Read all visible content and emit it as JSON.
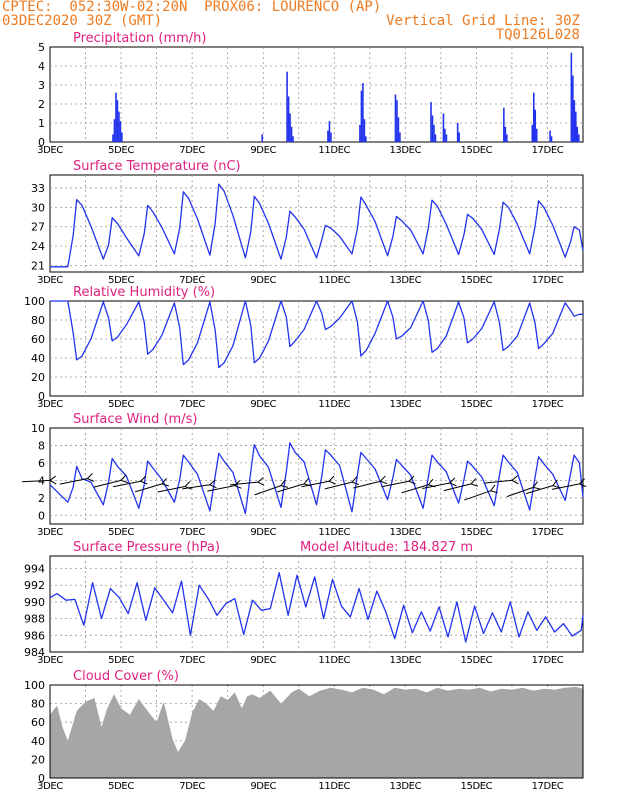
{
  "header": {
    "line1": "CPTEC:  052:30W-02:20N  PROX06: LOURENCO (AP)",
    "line2": "03DEC2020 30Z (GMT)",
    "grid_note": "Vertical Grid Line: 30Z",
    "code": "TQ0126L028"
  },
  "colors": {
    "header": "#ee7b22",
    "panel_title": "#e0207f",
    "series": "#2233ee",
    "cloud_fill": "#a6a6a6",
    "wind_arrow": "#000000",
    "grid": "#999999"
  },
  "chart_data": [
    {
      "type": "bar",
      "title": "Precipitation (mm/h)",
      "ylim": [
        0,
        5
      ],
      "yticks": [
        0,
        1,
        2,
        3,
        4,
        5
      ],
      "xlim": [
        3,
        18
      ],
      "xticks": [
        "3DEC",
        "5DEC",
        "7DEC",
        "9DEC",
        "11DEC",
        "13DEC",
        "15DEC",
        "17DEC"
      ],
      "grid": true,
      "events": [
        {
          "day": 4.75,
          "values": [
            0.4,
            1.2,
            2.6,
            2.2,
            1.6,
            1.1,
            0.5
          ]
        },
        {
          "day": 8.95,
          "values": [
            0.4
          ]
        },
        {
          "day": 9.65,
          "values": [
            3.7,
            2.4,
            1.5,
            0.8,
            0.3
          ]
        },
        {
          "day": 10.8,
          "values": [
            0.6,
            1.1,
            0.5
          ]
        },
        {
          "day": 11.7,
          "values": [
            0.9,
            2.7,
            3.1,
            1.2,
            0.3
          ]
        },
        {
          "day": 12.7,
          "values": [
            2.5,
            2.2,
            1.3,
            0.5
          ]
        },
        {
          "day": 13.7,
          "values": [
            2.1,
            1.4,
            0.9,
            0.4
          ]
        },
        {
          "day": 14.05,
          "values": [
            1.5,
            0.7,
            0.4
          ]
        },
        {
          "day": 14.45,
          "values": [
            1.0,
            0.5
          ]
        },
        {
          "day": 15.75,
          "values": [
            1.8,
            0.8,
            0.4
          ]
        },
        {
          "day": 16.55,
          "values": [
            0.9,
            2.6,
            1.7,
            0.7
          ]
        },
        {
          "day": 17.05,
          "values": [
            0.6,
            0.3
          ]
        },
        {
          "day": 17.65,
          "values": [
            4.7,
            3.5,
            2.2,
            1.6,
            0.8,
            0.4
          ]
        }
      ]
    },
    {
      "type": "line",
      "title": "Surface Temperature (nC)",
      "ylim": [
        20,
        35
      ],
      "yticks": [
        21,
        24,
        27,
        30,
        33
      ],
      "xlim": [
        3,
        18
      ],
      "xticks": [
        "3DEC",
        "5DEC",
        "7DEC",
        "9DEC",
        "11DEC",
        "13DEC",
        "15DEC",
        "17DEC"
      ],
      "grid": true,
      "x": [
        3.0,
        3.5,
        3.5,
        3.65,
        3.75,
        3.9,
        4.15,
        4.5,
        4.5,
        4.65,
        4.75,
        4.9,
        5.15,
        5.5,
        5.5,
        5.65,
        5.75,
        5.9,
        6.15,
        6.5,
        6.5,
        6.65,
        6.75,
        6.9,
        7.15,
        7.5,
        7.5,
        7.65,
        7.75,
        7.9,
        8.15,
        8.5,
        8.5,
        8.65,
        8.75,
        8.9,
        9.15,
        9.5,
        9.5,
        9.65,
        9.75,
        9.9,
        10.15,
        10.5,
        10.5,
        10.65,
        10.75,
        10.9,
        11.15,
        11.5,
        11.5,
        11.65,
        11.75,
        11.9,
        12.15,
        12.5,
        12.5,
        12.65,
        12.75,
        12.9,
        13.15,
        13.5,
        13.5,
        13.65,
        13.75,
        13.9,
        14.15,
        14.5,
        14.5,
        14.65,
        14.75,
        14.9,
        15.15,
        15.5,
        15.5,
        15.65,
        15.75,
        15.9,
        16.15,
        16.5,
        16.5,
        16.65,
        16.75,
        16.9,
        17.15,
        17.5,
        17.5,
        17.65,
        17.75,
        17.9,
        18.0
      ],
      "y": [
        20.8,
        20.8,
        20.8,
        25.6,
        31.2,
        30.3,
        27.1,
        22.0,
        22.0,
        24.2,
        28.4,
        27.5,
        25.3,
        22.5,
        22.5,
        25.9,
        30.3,
        29.3,
        26.9,
        22.8,
        22.8,
        26.8,
        32.4,
        31.4,
        28.2,
        22.6,
        22.6,
        27.6,
        33.6,
        32.5,
        28.7,
        22.2,
        22.2,
        26.2,
        31.7,
        30.6,
        27.5,
        22.0,
        22.0,
        25.4,
        29.4,
        28.5,
        26.6,
        22.2,
        22.2,
        25.0,
        27.2,
        26.8,
        25.5,
        22.8,
        22.8,
        26.7,
        31.6,
        30.3,
        27.8,
        22.5,
        22.5,
        25.5,
        28.6,
        27.9,
        26.5,
        22.8,
        22.8,
        26.9,
        31.1,
        30.2,
        27.4,
        22.7,
        22.7,
        25.8,
        28.9,
        28.3,
        26.6,
        22.7,
        22.7,
        26.7,
        30.8,
        30.0,
        27.4,
        22.8,
        22.8,
        27.0,
        31.0,
        30.0,
        27.2,
        22.3,
        22.3,
        24.7,
        27.0,
        26.5,
        23.3
      ]
    },
    {
      "type": "line",
      "title": "Relative Humidity (%)",
      "ylim": [
        0,
        100
      ],
      "yticks": [
        0,
        20,
        40,
        60,
        80,
        100
      ],
      "xlim": [
        3,
        18
      ],
      "xticks": [
        "3DEC",
        "5DEC",
        "7DEC",
        "9DEC",
        "11DEC",
        "13DEC",
        "15DEC",
        "17DEC"
      ],
      "grid": true,
      "x": [
        3.0,
        3.5,
        3.5,
        3.65,
        3.75,
        3.9,
        4.15,
        4.5,
        4.5,
        4.65,
        4.75,
        4.9,
        5.15,
        5.5,
        5.5,
        5.65,
        5.75,
        5.9,
        6.15,
        6.5,
        6.5,
        6.65,
        6.75,
        6.9,
        7.15,
        7.5,
        7.5,
        7.65,
        7.75,
        7.9,
        8.15,
        8.5,
        8.5,
        8.65,
        8.75,
        8.9,
        9.15,
        9.5,
        9.5,
        9.65,
        9.75,
        9.9,
        10.15,
        10.5,
        10.5,
        10.65,
        10.75,
        10.9,
        11.15,
        11.5,
        11.5,
        11.65,
        11.75,
        11.9,
        12.15,
        12.5,
        12.5,
        12.65,
        12.75,
        12.9,
        13.15,
        13.5,
        13.5,
        13.65,
        13.75,
        13.9,
        14.15,
        14.5,
        14.5,
        14.65,
        14.75,
        14.9,
        15.15,
        15.5,
        15.5,
        15.65,
        15.75,
        15.9,
        16.15,
        16.5,
        16.5,
        16.65,
        16.75,
        16.9,
        17.15,
        17.5,
        17.5,
        17.65,
        17.75,
        17.9,
        18.0
      ],
      "y": [
        100,
        100,
        100,
        67,
        38,
        42,
        60,
        99,
        99,
        82,
        58,
        62,
        75,
        99,
        99,
        78,
        44,
        49,
        64,
        98,
        98,
        72,
        33,
        38,
        56,
        99,
        99,
        69,
        30,
        35,
        53,
        100,
        100,
        74,
        35,
        40,
        58,
        100,
        100,
        83,
        52,
        58,
        70,
        100,
        100,
        87,
        70,
        73,
        82,
        100,
        100,
        78,
        42,
        48,
        66,
        100,
        100,
        83,
        60,
        63,
        72,
        100,
        100,
        79,
        46,
        50,
        63,
        99,
        99,
        82,
        56,
        60,
        71,
        99,
        99,
        77,
        48,
        52,
        63,
        98,
        98,
        77,
        50,
        55,
        66,
        98,
        98,
        90,
        84,
        86,
        86
      ]
    },
    {
      "type": "line",
      "title": "Surface Wind (m/s)",
      "ylim": [
        -1,
        10
      ],
      "yticks": [
        0,
        2,
        4,
        6,
        8,
        10
      ],
      "xlim": [
        3,
        18
      ],
      "xticks": [
        "3DEC",
        "5DEC",
        "7DEC",
        "9DEC",
        "11DEC",
        "13DEC",
        "15DEC",
        "17DEC"
      ],
      "grid": true,
      "x": [
        3.0,
        3.5,
        3.5,
        3.65,
        3.75,
        3.9,
        4.15,
        4.5,
        4.5,
        4.65,
        4.75,
        4.9,
        5.15,
        5.5,
        5.5,
        5.65,
        5.75,
        5.9,
        6.15,
        6.5,
        6.5,
        6.65,
        6.75,
        6.9,
        7.15,
        7.5,
        7.5,
        7.65,
        7.75,
        7.9,
        8.15,
        8.5,
        8.5,
        8.65,
        8.75,
        8.9,
        9.15,
        9.5,
        9.5,
        9.65,
        9.75,
        9.9,
        10.15,
        10.5,
        10.5,
        10.65,
        10.75,
        10.9,
        11.15,
        11.5,
        11.5,
        11.65,
        11.75,
        11.9,
        12.15,
        12.5,
        12.5,
        12.65,
        12.75,
        12.9,
        13.15,
        13.5,
        13.5,
        13.65,
        13.75,
        13.9,
        14.15,
        14.5,
        14.5,
        14.65,
        14.75,
        14.9,
        15.15,
        15.5,
        15.5,
        15.65,
        15.75,
        15.9,
        16.15,
        16.5,
        16.5,
        16.65,
        16.75,
        16.9,
        17.15,
        17.5,
        17.5,
        17.65,
        17.75,
        17.9,
        18.0
      ],
      "y": [
        3.5,
        1.5,
        1.5,
        3.2,
        5.6,
        4.2,
        3.8,
        1.2,
        1.2,
        3.8,
        6.5,
        5.6,
        4.5,
        0.8,
        0.8,
        3.5,
        6.2,
        5.4,
        4.1,
        1.5,
        1.5,
        4.1,
        6.9,
        6.1,
        4.7,
        0.5,
        0.5,
        4.5,
        7.1,
        6.2,
        4.9,
        0.2,
        0.2,
        5.0,
        8.1,
        6.8,
        5.5,
        0.9,
        0.9,
        5.0,
        8.3,
        7.2,
        6.1,
        1.2,
        1.2,
        4.5,
        7.5,
        6.9,
        5.7,
        0.4,
        0.4,
        4.6,
        7.2,
        6.5,
        5.3,
        1.8,
        1.8,
        4.3,
        6.4,
        5.7,
        4.6,
        0.8,
        0.8,
        4.4,
        6.9,
        6.1,
        5.0,
        1.4,
        1.4,
        4.1,
        6.2,
        5.6,
        4.4,
        1.1,
        1.1,
        4.6,
        6.9,
        6.1,
        4.9,
        0.6,
        0.6,
        4.3,
        6.7,
        5.9,
        4.7,
        1.7,
        1.7,
        4.8,
        6.9,
        6.0,
        2.1
      ],
      "wind_arrows": [
        {
          "x": 3.0,
          "y": 4.0,
          "dir": [
            -1.0,
            0.05
          ]
        },
        {
          "x": 4.05,
          "y": 4.2,
          "dir": [
            -1.0,
            0.2
          ]
        },
        {
          "x": 5.0,
          "y": 4.0,
          "dir": [
            -1.0,
            0.25
          ]
        },
        {
          "x": 5.55,
          "y": 3.9,
          "dir": [
            -1.0,
            0.2
          ]
        },
        {
          "x": 6.15,
          "y": 3.6,
          "dir": [
            -1.0,
            0.3
          ]
        },
        {
          "x": 6.8,
          "y": 3.3,
          "dir": [
            -1.0,
            0.2
          ]
        },
        {
          "x": 7.5,
          "y": 3.5,
          "dir": [
            -1.0,
            0.15
          ]
        },
        {
          "x": 8.2,
          "y": 3.4,
          "dir": [
            -1.0,
            0.2
          ]
        },
        {
          "x": 8.85,
          "y": 3.8,
          "dir": [
            -1.0,
            0.1
          ]
        },
        {
          "x": 9.5,
          "y": 3.4,
          "dir": [
            -1.0,
            0.35
          ]
        },
        {
          "x": 10.15,
          "y": 3.6,
          "dir": [
            -1.0,
            0.3
          ]
        },
        {
          "x": 10.85,
          "y": 3.9,
          "dir": [
            -1.0,
            0.2
          ]
        },
        {
          "x": 11.5,
          "y": 3.8,
          "dir": [
            -1.0,
            0.25
          ]
        },
        {
          "x": 12.3,
          "y": 3.9,
          "dir": [
            -1.0,
            0.25
          ]
        },
        {
          "x": 13.1,
          "y": 3.9,
          "dir": [
            -1.0,
            0.2
          ]
        },
        {
          "x": 13.65,
          "y": 3.5,
          "dir": [
            -1.0,
            0.3
          ]
        },
        {
          "x": 14.25,
          "y": 3.7,
          "dir": [
            -1.0,
            0.2
          ]
        },
        {
          "x": 14.85,
          "y": 3.6,
          "dir": [
            -1.0,
            0.25
          ]
        },
        {
          "x": 15.4,
          "y": 2.8,
          "dir": [
            -1.0,
            0.35
          ]
        },
        {
          "x": 16.0,
          "y": 4.0,
          "dir": [
            -1.0,
            0.1
          ]
        },
        {
          "x": 16.6,
          "y": 3.2,
          "dir": [
            -1.0,
            0.35
          ]
        },
        {
          "x": 17.15,
          "y": 3.4,
          "dir": [
            -1.0,
            0.3
          ]
        },
        {
          "x": 17.9,
          "y": 3.6,
          "dir": [
            -1.0,
            0.2
          ]
        }
      ]
    },
    {
      "type": "line",
      "title": "Surface Pressure (hPa)",
      "annotation": "Model Altitude: 184.827 m",
      "ylim": [
        984,
        995.5
      ],
      "yticks": [
        984,
        986,
        988,
        990,
        992,
        994
      ],
      "xlim": [
        3,
        18
      ],
      "xticks": [
        "3DEC",
        "5DEC",
        "7DEC",
        "9DEC",
        "11DEC",
        "13DEC",
        "15DEC",
        "17DEC"
      ],
      "grid": true,
      "x": [
        3.0,
        3.2,
        3.45,
        3.7,
        3.95,
        4.2,
        4.45,
        4.7,
        4.95,
        5.2,
        5.45,
        5.7,
        5.95,
        6.2,
        6.45,
        6.7,
        6.95,
        7.2,
        7.45,
        7.7,
        7.95,
        8.2,
        8.45,
        8.7,
        8.95,
        9.2,
        9.45,
        9.7,
        9.95,
        10.2,
        10.45,
        10.7,
        10.95,
        11.2,
        11.45,
        11.7,
        11.95,
        12.2,
        12.45,
        12.7,
        12.95,
        13.2,
        13.45,
        13.7,
        13.95,
        14.2,
        14.45,
        14.7,
        14.95,
        15.2,
        15.45,
        15.7,
        15.95,
        16.2,
        16.45,
        16.7,
        16.95,
        17.2,
        17.45,
        17.7,
        17.95,
        18.0
      ],
      "y": [
        990.5,
        991.0,
        990.2,
        990.3,
        987.2,
        992.3,
        988.0,
        991.6,
        990.5,
        988.6,
        992.3,
        987.8,
        991.7,
        990.2,
        988.7,
        992.5,
        986.0,
        992.0,
        990.4,
        988.4,
        989.8,
        990.4,
        986.1,
        990.2,
        989.0,
        989.2,
        993.5,
        988.4,
        993.2,
        989.4,
        993.0,
        988.0,
        992.7,
        989.5,
        988.2,
        991.6,
        987.9,
        991.3,
        988.8,
        985.6,
        989.6,
        986.3,
        988.8,
        986.5,
        989.4,
        985.8,
        990.0,
        985.2,
        989.5,
        986.2,
        988.7,
        986.4,
        990.0,
        985.8,
        988.8,
        986.6,
        988.2,
        986.4,
        987.4,
        985.9,
        986.6,
        988.4
      ]
    },
    {
      "type": "area",
      "title": "Cloud Cover (%)",
      "ylim": [
        0,
        100
      ],
      "yticks": [
        0,
        20,
        40,
        60,
        80,
        100
      ],
      "xlim": [
        3,
        18
      ],
      "xticks": [
        "3DEC",
        "5DEC",
        "7DEC",
        "9DEC",
        "11DEC",
        "13DEC",
        "15DEC",
        "17DEC"
      ],
      "grid": true,
      "x": [
        3.0,
        3.2,
        3.35,
        3.5,
        3.75,
        4.0,
        4.25,
        4.45,
        4.6,
        4.8,
        5.0,
        5.25,
        5.5,
        5.75,
        6.0,
        6.2,
        6.45,
        6.6,
        6.8,
        7.0,
        7.2,
        7.4,
        7.6,
        7.8,
        8.0,
        8.2,
        8.4,
        8.55,
        8.7,
        8.9,
        9.2,
        9.5,
        9.8,
        10.0,
        10.3,
        10.6,
        10.9,
        11.2,
        11.5,
        11.8,
        12.1,
        12.4,
        12.7,
        13.0,
        13.3,
        13.6,
        13.9,
        14.2,
        14.5,
        14.8,
        15.1,
        15.4,
        15.7,
        16.0,
        16.3,
        16.6,
        16.9,
        17.2,
        17.5,
        17.8,
        18.0
      ],
      "y": [
        68,
        78,
        55,
        40,
        72,
        82,
        86,
        55,
        74,
        90,
        75,
        68,
        85,
        72,
        60,
        82,
        42,
        28,
        40,
        70,
        85,
        80,
        72,
        88,
        84,
        92,
        75,
        88,
        90,
        86,
        94,
        80,
        92,
        96,
        88,
        94,
        97,
        95,
        92,
        97,
        95,
        90,
        97,
        95,
        96,
        92,
        97,
        94,
        96,
        95,
        97,
        93,
        96,
        95,
        97,
        94,
        96,
        95,
        97,
        98,
        96
      ]
    }
  ]
}
